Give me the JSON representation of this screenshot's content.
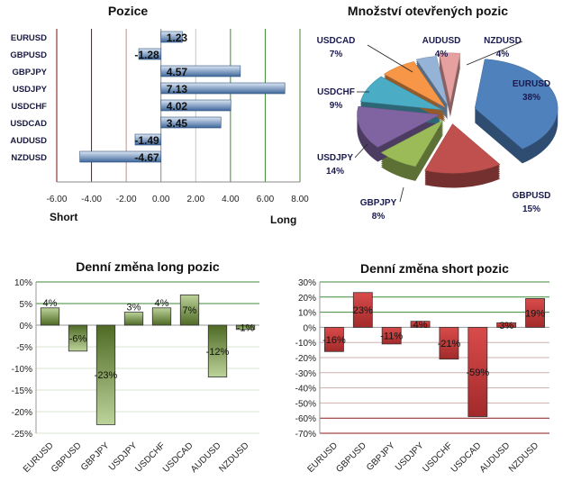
{
  "chart_data": [
    {
      "type": "bar",
      "orientation": "horizontal",
      "title": "Pozice",
      "categories": [
        "EURUSD",
        "GBPUSD",
        "GBPJPY",
        "USDJPY",
        "USDCHF",
        "USDCAD",
        "AUDUSD",
        "NZDUSD"
      ],
      "values": [
        1.23,
        -1.28,
        4.57,
        7.13,
        4.02,
        3.45,
        -1.49,
        -4.67
      ],
      "value_labels": [
        "1.23",
        "-1.28",
        "4.57",
        "7.13",
        "4.02",
        "3.45",
        "-1.49",
        "-4.67"
      ],
      "xlim": [
        -6,
        8
      ],
      "xticks": [
        "-6.00",
        "-4.00",
        "-2.00",
        "0.00",
        "2.00",
        "4.00",
        "6.00",
        "8.00"
      ],
      "left_label": "Short",
      "right_label": "Long",
      "grid": true,
      "colors": {
        "bar": "#4f76a8",
        "negative_grid": "#8b1a1a",
        "positive_grid": "#4a8a3a"
      }
    },
    {
      "type": "pie",
      "title": "Množství otevřených pozic",
      "categories": [
        "EURUSD",
        "GBPUSD",
        "GBPJPY",
        "USDJPY",
        "USDCHF",
        "USDCAD",
        "AUDUSD",
        "NZDUSD"
      ],
      "values": [
        38,
        15,
        8,
        14,
        9,
        7,
        4,
        4
      ],
      "value_labels": [
        "38%",
        "15%",
        "8%",
        "14%",
        "9%",
        "7%",
        "4%",
        "4%"
      ],
      "colors": [
        "#4f81bd",
        "#c0504d",
        "#9bbb59",
        "#8064a2",
        "#4bacc6",
        "#f79646",
        "#95b3d7",
        "#e6a0a0"
      ]
    },
    {
      "type": "bar",
      "title": "Denní změna long pozic",
      "categories": [
        "EURUSD",
        "GBPUSD",
        "GBPJPY",
        "USDJPY",
        "USDCHF",
        "USDCAD",
        "AUDUSD",
        "NZDUSD"
      ],
      "values": [
        4,
        -6,
        -23,
        3,
        4,
        7,
        -12,
        -1
      ],
      "value_labels": [
        "4%",
        "-6%",
        "-23%",
        "3%",
        "4%",
        "7%",
        "-12%",
        "-1%"
      ],
      "ylim": [
        -25,
        10
      ],
      "yticks": [
        "10%",
        "5%",
        "0%",
        "-5%",
        "-10%",
        "-15%",
        "-20%",
        "-25%"
      ],
      "grid": true,
      "colors": {
        "bar": "#76923c"
      }
    },
    {
      "type": "bar",
      "title": "Denní změna short pozic",
      "categories": [
        "EURUSD",
        "GBPUSD",
        "GBPJPY",
        "USDJPY",
        "USDCHF",
        "USDCAD",
        "AUDUSD",
        "NZDUSD"
      ],
      "values": [
        -16,
        23,
        -11,
        4,
        -21,
        -59,
        3,
        19
      ],
      "value_labels": [
        "-16%",
        "23%",
        "-11%",
        "4%",
        "-21%",
        "-59%",
        "3%",
        "19%"
      ],
      "ylim": [
        -70,
        30
      ],
      "yticks": [
        "30%",
        "20%",
        "10%",
        "0%",
        "-10%",
        "-20%",
        "-30%",
        "-40%",
        "-50%",
        "-60%",
        "-70%"
      ],
      "grid": true,
      "colors": {
        "bar": "#c0393b"
      }
    }
  ]
}
